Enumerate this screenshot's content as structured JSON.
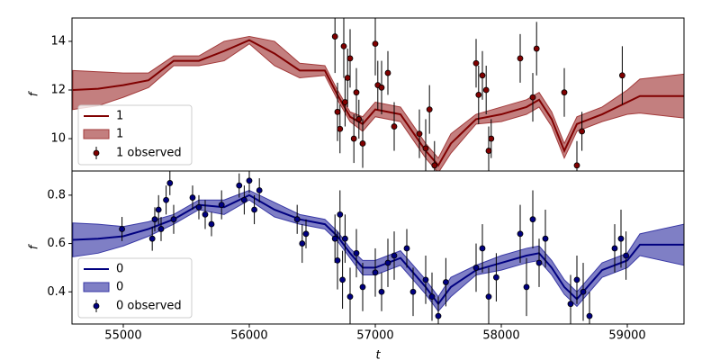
{
  "chart_data": [
    {
      "type": "line",
      "ylabel": "f",
      "xlim": [
        54593,
        59450
      ],
      "ylim": [
        8.67,
        14.96
      ],
      "yticks": [
        10,
        12,
        14
      ],
      "legend": "lower left",
      "x": [
        54600,
        54800,
        55000,
        55200,
        55400,
        55600,
        55800,
        56000,
        56200,
        56400,
        56600,
        56700,
        56800,
        56900,
        57000,
        57200,
        57400,
        57500,
        57600,
        57800,
        58000,
        58200,
        58300,
        58400,
        58500,
        58600,
        58800,
        59000,
        59100,
        59450
      ],
      "model": {
        "name": "1",
        "color": "#800000",
        "values": [
          12.0,
          12.05,
          12.2,
          12.4,
          13.2,
          13.2,
          13.6,
          14.05,
          13.5,
          12.8,
          12.8,
          11.8,
          10.9,
          10.6,
          11.2,
          11.0,
          9.5,
          8.9,
          9.8,
          10.8,
          11.0,
          11.3,
          11.6,
          10.8,
          9.5,
          10.6,
          11.0,
          11.5,
          11.75,
          11.75
        ]
      },
      "band": {
        "name": "1",
        "color": "#a33b3b",
        "lower": [
          11.2,
          11.35,
          11.7,
          12.1,
          13.0,
          13.0,
          13.2,
          13.9,
          13.0,
          12.5,
          12.6,
          11.6,
          10.7,
          10.3,
          10.9,
          10.7,
          9.2,
          8.6,
          9.4,
          10.6,
          10.7,
          11.0,
          11.3,
          10.5,
          9.2,
          10.3,
          10.7,
          11.0,
          11.05,
          10.85
        ],
        "upper": [
          12.8,
          12.75,
          12.7,
          12.7,
          13.4,
          13.4,
          14.0,
          14.2,
          14.0,
          13.1,
          13.0,
          12.0,
          11.1,
          10.9,
          11.5,
          11.3,
          9.8,
          9.2,
          10.2,
          11.0,
          11.3,
          11.6,
          11.9,
          11.1,
          9.8,
          10.9,
          11.3,
          12.0,
          12.45,
          12.65
        ]
      },
      "observed": {
        "name": "1 observed",
        "color": "#800000",
        "x": [
          56680,
          56700,
          56720,
          56750,
          56760,
          56780,
          56800,
          56830,
          56850,
          56870,
          56900,
          57000,
          57020,
          57050,
          57100,
          57150,
          57350,
          57400,
          57430,
          57470,
          57800,
          57820,
          57850,
          57880,
          57900,
          57920,
          58150,
          58250,
          58280,
          58500,
          58600,
          58640,
          58960
        ],
        "values": [
          14.2,
          11.1,
          10.4,
          13.8,
          11.5,
          12.5,
          13.3,
          10.0,
          11.9,
          10.8,
          9.8,
          13.9,
          12.2,
          12.1,
          12.7,
          10.5,
          10.2,
          9.6,
          11.2,
          8.9,
          13.1,
          11.8,
          12.6,
          12.0,
          9.5,
          10.0,
          13.3,
          11.7,
          13.7,
          11.9,
          8.9,
          10.3,
          12.6
        ],
        "errors": [
          1.5,
          1.2,
          1.0,
          1.3,
          1.0,
          1.2,
          1.2,
          1.0,
          1.0,
          0.8,
          1.0,
          1.3,
          1.0,
          1.1,
          0.9,
          1.0,
          1.0,
          1.2,
          1.0,
          1.0,
          1.0,
          1.2,
          1.0,
          1.0,
          1.0,
          0.8,
          1.0,
          1.0,
          1.1,
          1.0,
          1.0,
          0.8,
          1.2
        ]
      }
    },
    {
      "type": "line",
      "ylabel": "f",
      "xlabel": "t",
      "xlim": [
        54593,
        59450
      ],
      "ylim": [
        0.267,
        0.9
      ],
      "yticks": [
        0.4,
        0.6,
        0.8
      ],
      "xticks": [
        55000,
        56000,
        57000,
        58000,
        59000
      ],
      "legend": "lower left",
      "x": [
        54600,
        54800,
        55000,
        55200,
        55400,
        55600,
        55800,
        56000,
        56200,
        56400,
        56600,
        56700,
        56800,
        56900,
        57000,
        57200,
        57400,
        57500,
        57600,
        57800,
        58000,
        58200,
        58300,
        58400,
        58500,
        58600,
        58800,
        59000,
        59100,
        59450
      ],
      "model": {
        "name": "0",
        "color": "#000080",
        "values": [
          0.615,
          0.62,
          0.63,
          0.66,
          0.7,
          0.76,
          0.75,
          0.8,
          0.74,
          0.7,
          0.68,
          0.63,
          0.56,
          0.5,
          0.5,
          0.54,
          0.42,
          0.35,
          0.42,
          0.49,
          0.52,
          0.55,
          0.56,
          0.5,
          0.42,
          0.37,
          0.49,
          0.53,
          0.595,
          0.595
        ]
      },
      "band": {
        "name": "0",
        "color": "#3a3aa6",
        "lower": [
          0.545,
          0.56,
          0.59,
          0.63,
          0.68,
          0.74,
          0.72,
          0.78,
          0.71,
          0.68,
          0.66,
          0.61,
          0.54,
          0.47,
          0.47,
          0.51,
          0.39,
          0.32,
          0.38,
          0.47,
          0.49,
          0.52,
          0.53,
          0.47,
          0.39,
          0.34,
          0.46,
          0.5,
          0.55,
          0.51
        ],
        "upper": [
          0.685,
          0.68,
          0.67,
          0.69,
          0.72,
          0.78,
          0.78,
          0.82,
          0.77,
          0.72,
          0.7,
          0.65,
          0.58,
          0.53,
          0.53,
          0.57,
          0.45,
          0.38,
          0.46,
          0.51,
          0.55,
          0.58,
          0.59,
          0.53,
          0.45,
          0.4,
          0.52,
          0.56,
          0.64,
          0.68
        ]
      },
      "observed": {
        "name": "0 observed",
        "color": "#000080",
        "x": [
          54990,
          55230,
          55250,
          55280,
          55300,
          55340,
          55370,
          55400,
          55550,
          55600,
          55650,
          55700,
          55780,
          55920,
          55960,
          56000,
          56040,
          56080,
          56380,
          56420,
          56450,
          56680,
          56700,
          56720,
          56740,
          56760,
          56800,
          56850,
          56900,
          57000,
          57050,
          57100,
          57150,
          57250,
          57300,
          57400,
          57450,
          57500,
          57560,
          57800,
          57850,
          57900,
          57960,
          58150,
          58200,
          58250,
          58300,
          58350,
          58550,
          58600,
          58650,
          58700,
          58900,
          58950,
          58990
        ],
        "values": [
          0.66,
          0.62,
          0.7,
          0.74,
          0.66,
          0.78,
          0.85,
          0.7,
          0.79,
          0.75,
          0.72,
          0.68,
          0.76,
          0.84,
          0.78,
          0.86,
          0.74,
          0.82,
          0.7,
          0.6,
          0.64,
          0.62,
          0.53,
          0.72,
          0.45,
          0.62,
          0.38,
          0.56,
          0.42,
          0.48,
          0.4,
          0.52,
          0.55,
          0.58,
          0.4,
          0.45,
          0.38,
          0.3,
          0.44,
          0.5,
          0.58,
          0.38,
          0.46,
          0.64,
          0.42,
          0.7,
          0.52,
          0.62,
          0.35,
          0.45,
          0.4,
          0.3,
          0.58,
          0.62,
          0.55
        ],
        "errors": [
          0.05,
          0.05,
          0.05,
          0.06,
          0.05,
          0.06,
          0.05,
          0.06,
          0.05,
          0.05,
          0.06,
          0.05,
          0.06,
          0.05,
          0.06,
          0.05,
          0.06,
          0.05,
          0.06,
          0.08,
          0.06,
          0.1,
          0.12,
          0.1,
          0.12,
          0.1,
          0.12,
          0.1,
          0.1,
          0.1,
          0.08,
          0.1,
          0.1,
          0.08,
          0.1,
          0.1,
          0.1,
          0.08,
          0.1,
          0.1,
          0.1,
          0.12,
          0.1,
          0.12,
          0.12,
          0.12,
          0.1,
          0.12,
          0.12,
          0.1,
          0.12,
          0.1,
          0.1,
          0.12,
          0.1
        ]
      }
    }
  ]
}
